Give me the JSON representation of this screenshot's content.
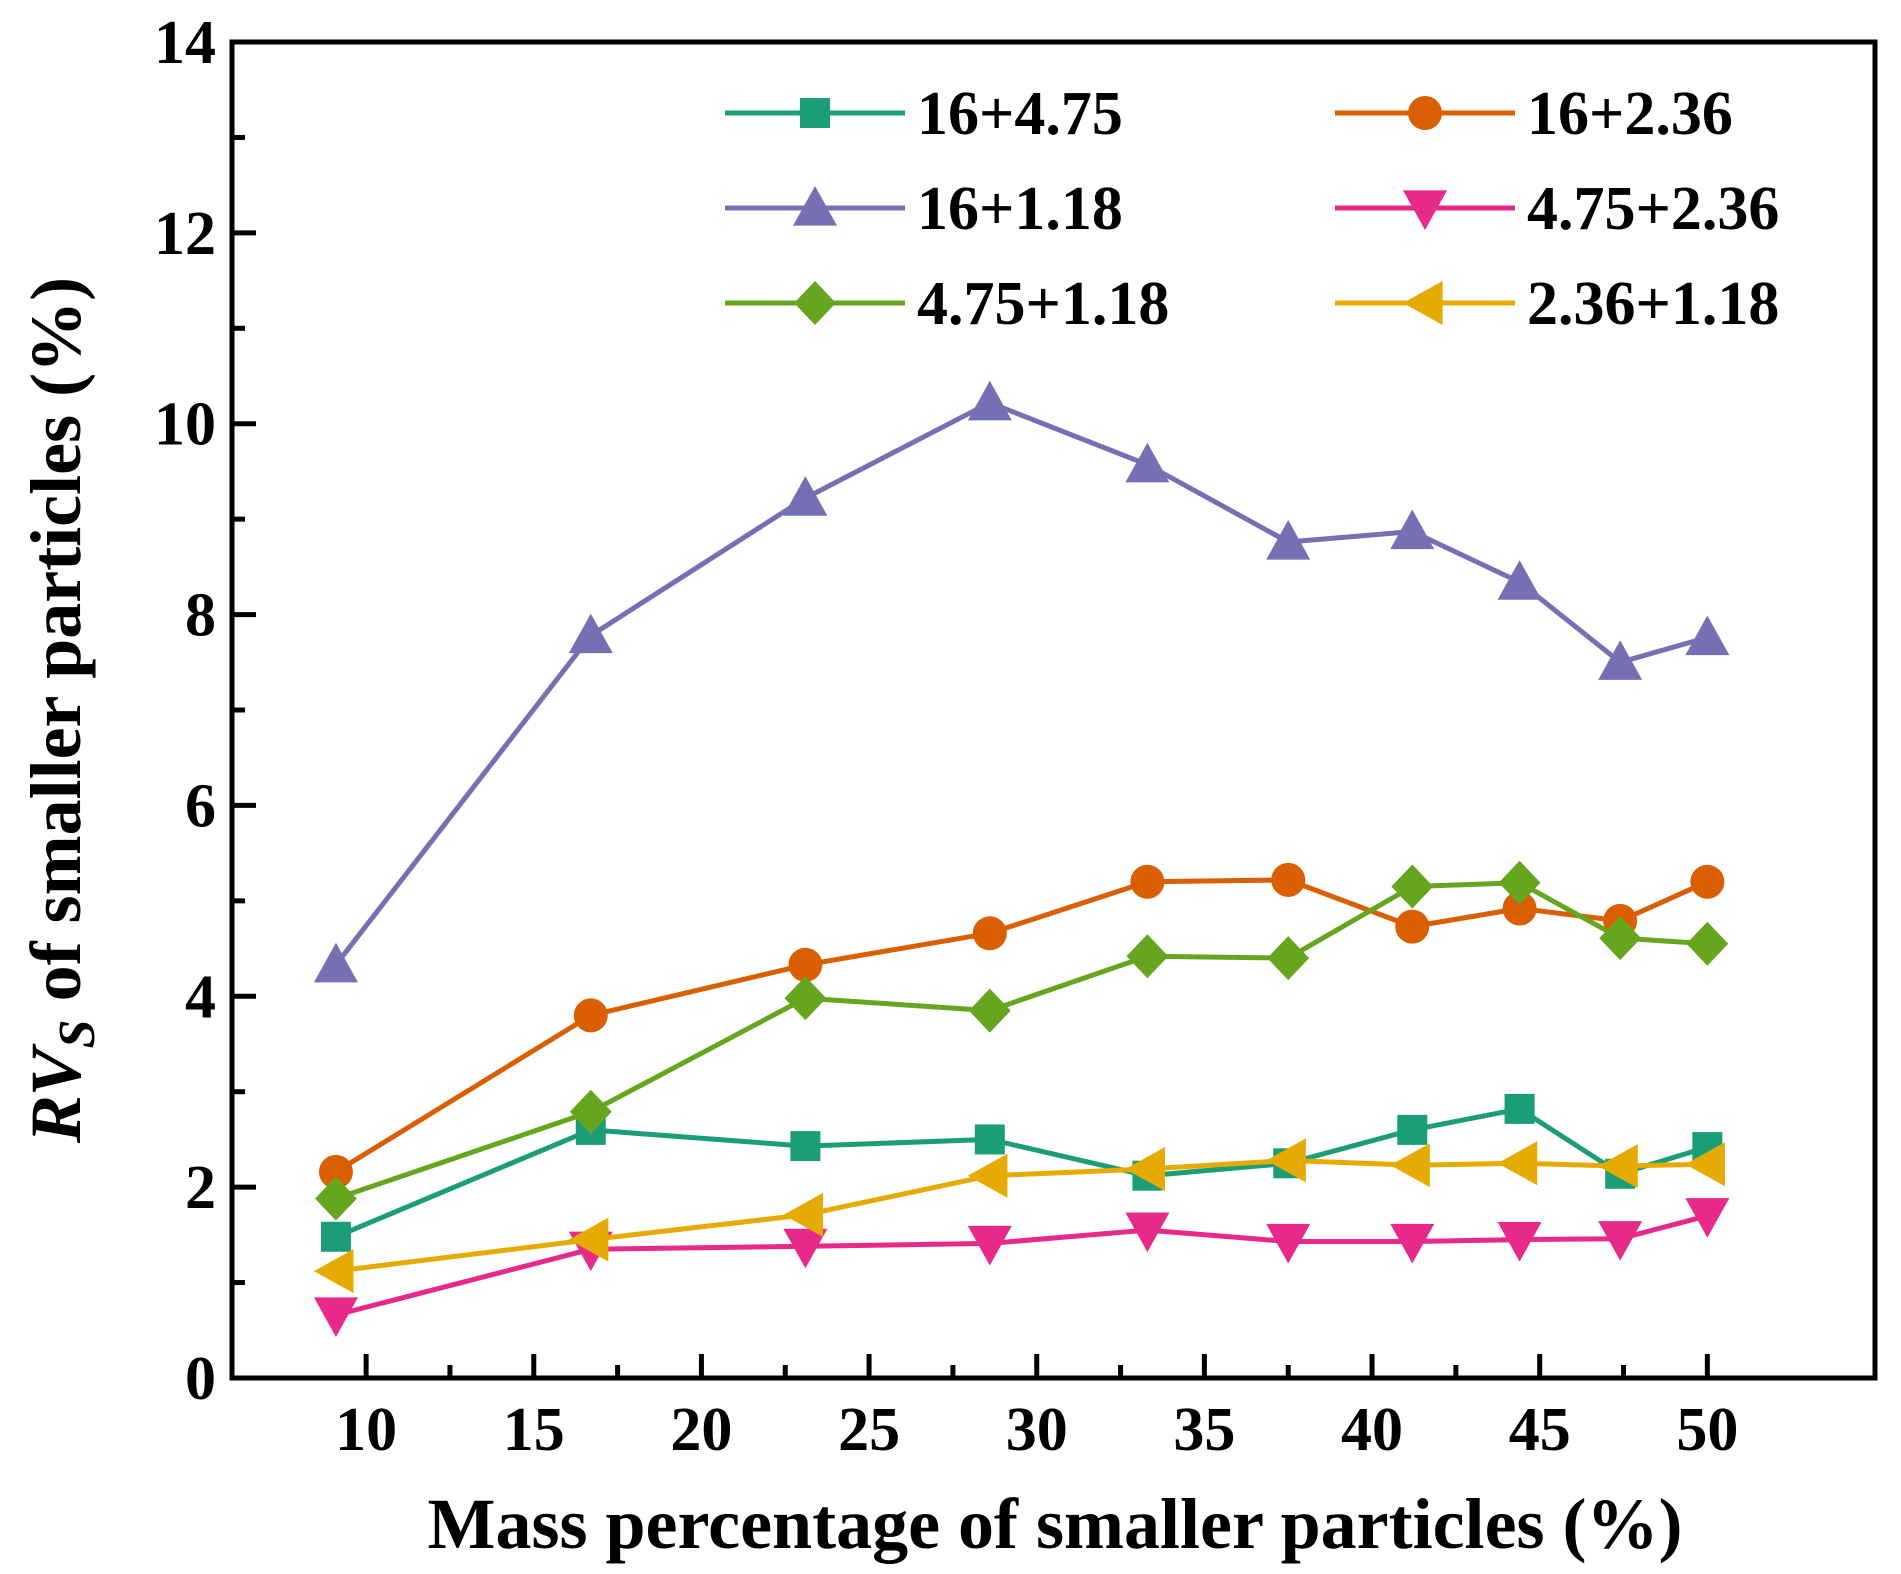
{
  "chart_data": {
    "type": "line",
    "title": "",
    "xlabel": "Mass percentage of smaller particles (%)",
    "ylabel": {
      "prefix": "RV",
      "subscript": "S",
      "suffix": " of smaller particles (%)"
    },
    "xlim": [
      6,
      55
    ],
    "ylim": [
      0,
      14
    ],
    "xticks": [
      10,
      15,
      20,
      25,
      30,
      35,
      40,
      45,
      50
    ],
    "yticks": [
      0,
      2,
      4,
      6,
      8,
      10,
      12,
      14
    ],
    "grid": false,
    "legend_position": "top-right",
    "series": [
      {
        "name": "16+4.75",
        "color": "#1b9e77",
        "marker": "square",
        "x": [
          9.1,
          16.7,
          23.1,
          28.6,
          33.3,
          37.5,
          41.2,
          44.4,
          47.4,
          50
        ],
        "y": [
          1.48,
          2.6,
          2.43,
          2.5,
          2.12,
          2.25,
          2.6,
          2.82,
          2.14,
          2.42
        ]
      },
      {
        "name": "16+2.36",
        "color": "#d95f02",
        "marker": "circle",
        "x": [
          9.1,
          16.7,
          23.1,
          28.6,
          33.3,
          37.5,
          41.2,
          44.4,
          47.4,
          50
        ],
        "y": [
          2.16,
          3.8,
          4.33,
          4.66,
          5.2,
          5.22,
          4.73,
          4.92,
          4.79,
          5.2
        ]
      },
      {
        "name": "16+1.18",
        "color": "#7570b3",
        "marker": "triangle-up",
        "x": [
          9.1,
          16.7,
          23.1,
          28.6,
          33.3,
          37.5,
          41.2,
          44.4,
          47.4,
          50
        ],
        "y": [
          4.33,
          7.78,
          9.22,
          10.22,
          9.57,
          8.76,
          8.87,
          8.34,
          7.5,
          7.76
        ]
      },
      {
        "name": "4.75+2.36",
        "color": "#e7298a",
        "marker": "triangle-down",
        "x": [
          9.1,
          16.7,
          23.1,
          28.6,
          33.3,
          37.5,
          41.2,
          44.4,
          47.4,
          50
        ],
        "y": [
          0.66,
          1.35,
          1.38,
          1.41,
          1.55,
          1.43,
          1.43,
          1.45,
          1.46,
          1.7
        ]
      },
      {
        "name": "4.75+1.18",
        "color": "#66a61e",
        "marker": "diamond",
        "x": [
          9.1,
          16.7,
          23.1,
          28.6,
          33.3,
          37.5,
          41.2,
          44.4,
          47.4,
          50
        ],
        "y": [
          1.88,
          2.79,
          3.98,
          3.85,
          4.42,
          4.4,
          5.15,
          5.19,
          4.61,
          4.55
        ]
      },
      {
        "name": "2.36+1.18",
        "color": "#e6ab02",
        "marker": "triangle-left",
        "x": [
          9.1,
          16.7,
          23.1,
          28.6,
          33.3,
          37.5,
          41.2,
          44.4,
          47.4,
          50
        ],
        "y": [
          1.12,
          1.45,
          1.71,
          2.12,
          2.19,
          2.28,
          2.23,
          2.25,
          2.22,
          2.24
        ]
      }
    ]
  }
}
